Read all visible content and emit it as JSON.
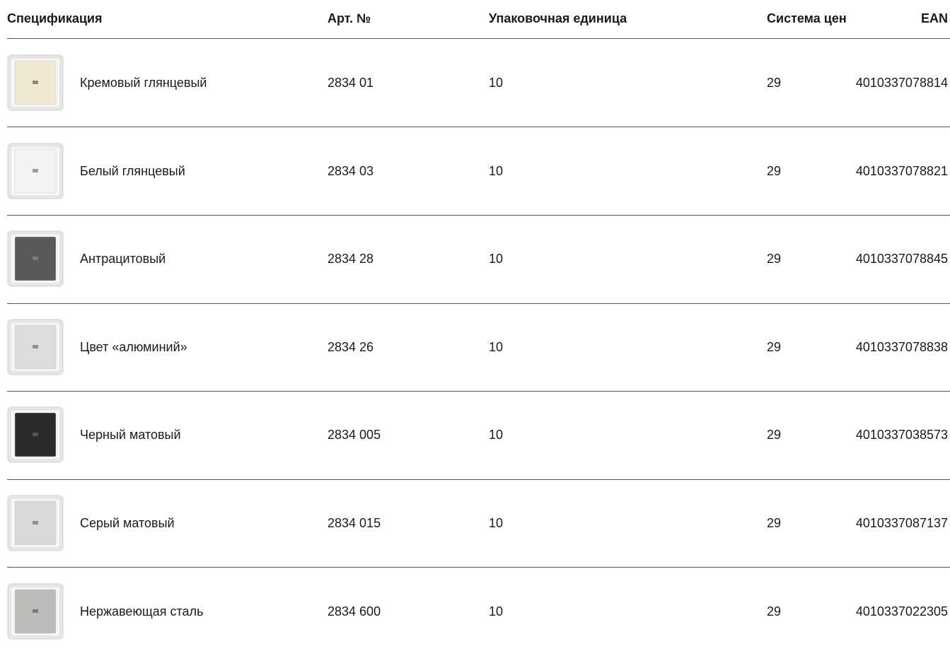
{
  "table": {
    "headers": [
      "Спецификация",
      "Арт. №",
      "Упаковочная единица",
      "Система цен",
      "EAN"
    ],
    "rows": [
      [
        "Кремовый глянцевый",
        "2834 01",
        "10",
        "29",
        "4010337078814"
      ],
      [
        "Белый глянцевый",
        "2834 03",
        "10",
        "29",
        "4010337078821"
      ],
      [
        "Антрацитовый",
        "2834 28",
        "10",
        "29",
        "4010337078845"
      ],
      [
        "Цвет «алюминий»",
        "2834 26",
        "10",
        "29",
        "4010337078838"
      ],
      [
        "Черный матовый",
        "2834 005",
        "10",
        "29",
        "4010337038573"
      ],
      [
        "Серый матовый",
        "2834 015",
        "10",
        "29",
        "4010337087137"
      ],
      [
        "Нержавеющая сталь",
        "2834 600",
        "10",
        "29",
        "4010337022305"
      ]
    ]
  }
}
